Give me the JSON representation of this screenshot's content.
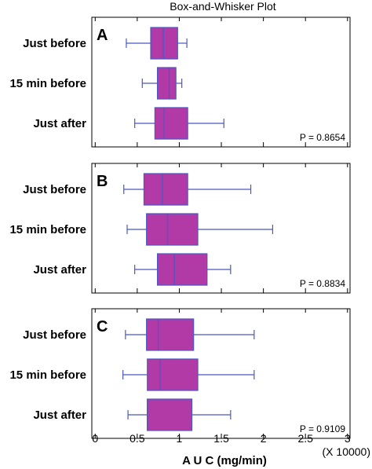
{
  "chart_data": {
    "type": "box",
    "title": "Box-and-Whisker Plot",
    "xlabel": "A U C (mg/min)",
    "x_multiplier": "(X 10000)",
    "xlim": [
      -0.04,
      3.03
    ],
    "xticks": [
      0,
      0.5,
      1,
      1.5,
      2,
      2.5,
      3
    ],
    "xtick_labels": [
      "0",
      "0.5",
      "1",
      "1.5",
      "2",
      "2.5",
      "3"
    ],
    "colors": {
      "box_fill": "#b23aa6",
      "box_stroke": "#4b58c4",
      "whisker": "#4b58c4"
    },
    "panels": [
      {
        "letter": "A",
        "p_value": "P = 0.8654",
        "rows": [
          {
            "label": "Just before",
            "min": 0.37,
            "q1": 0.66,
            "median": 0.81,
            "q3": 0.98,
            "max": 1.09
          },
          {
            "label": "15 min before",
            "min": 0.56,
            "q1": 0.74,
            "median": 0.88,
            "q3": 0.96,
            "max": 1.03
          },
          {
            "label": "Just after",
            "min": 0.47,
            "q1": 0.71,
            "median": 0.82,
            "q3": 1.1,
            "max": 1.53
          }
        ]
      },
      {
        "letter": "B",
        "p_value": "P = 0.8834",
        "rows": [
          {
            "label": "Just before",
            "min": 0.34,
            "q1": 0.58,
            "median": 0.8,
            "q3": 1.1,
            "max": 1.85
          },
          {
            "label": "15 min before",
            "min": 0.38,
            "q1": 0.61,
            "median": 0.86,
            "q3": 1.22,
            "max": 2.11
          },
          {
            "label": "Just after",
            "min": 0.47,
            "q1": 0.74,
            "median": 0.94,
            "q3": 1.33,
            "max": 1.61
          }
        ]
      },
      {
        "letter": "C",
        "p_value": "P = 0.9109",
        "rows": [
          {
            "label": "Just before",
            "min": 0.36,
            "q1": 0.61,
            "median": 0.75,
            "q3": 1.17,
            "max": 1.89
          },
          {
            "label": "15 min before",
            "min": 0.33,
            "q1": 0.62,
            "median": 0.77,
            "q3": 1.22,
            "max": 1.89
          },
          {
            "label": "Just after",
            "min": 0.39,
            "q1": 0.62,
            "median": 0.62,
            "q3": 1.15,
            "max": 1.61
          }
        ]
      }
    ]
  }
}
